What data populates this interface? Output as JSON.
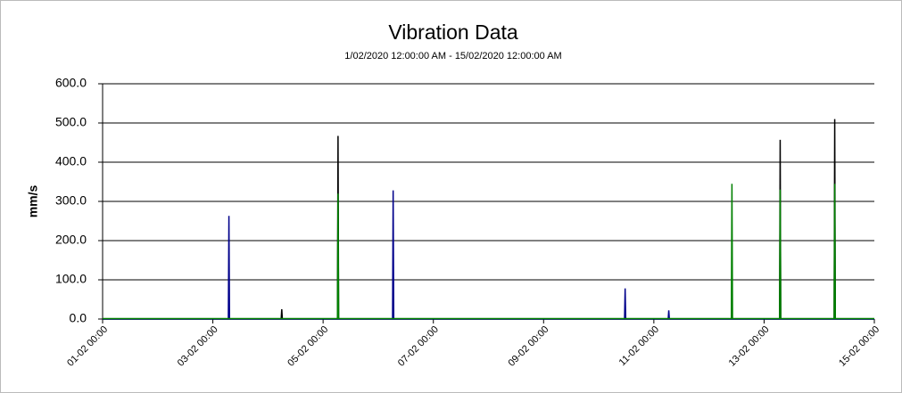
{
  "chart_data": {
    "type": "line",
    "title": "Vibration Data",
    "subtitle": "1/02/2020 12:00:00 AM - 15/02/2020 12:00:00 AM",
    "y_label": "mm/s",
    "xlim": [
      "01-02 00:00",
      "15-02 00:00"
    ],
    "xticks": [
      "01-02 00:00",
      "03-02 00:00",
      "05-02 00:00",
      "07-02 00:00",
      "09-02 00:00",
      "11-02 00:00",
      "13-02 00:00",
      "15-02 00:00"
    ],
    "ylim": [
      0,
      600
    ],
    "yticks": [
      {
        "value": 0,
        "label": "0.0"
      },
      {
        "value": 100,
        "label": "100.0"
      },
      {
        "value": 200,
        "label": "200.0"
      },
      {
        "value": 300,
        "label": "300.0"
      },
      {
        "value": 400,
        "label": "400.0"
      },
      {
        "value": 500,
        "label": "500.0"
      },
      {
        "value": 600,
        "label": "600.0"
      }
    ],
    "grid": true,
    "series": [
      {
        "color": "#000000",
        "x": [
          "01-02 00:00",
          "04-02 05:45",
          "04-02 06:00",
          "04-02 06:15",
          "05-02 06:15",
          "05-02 06:30",
          "05-02 06:45",
          "13-02 06:45",
          "13-02 07:00",
          "13-02 07:15",
          "14-02 06:30",
          "14-02 06:45",
          "14-02 07:00",
          "15-02 00:00"
        ],
        "values": [
          0,
          0,
          25,
          0,
          0,
          467,
          0,
          0,
          457,
          0,
          0,
          510,
          0,
          0
        ]
      },
      {
        "color": "#00008b",
        "x": [
          "01-02 00:00",
          "03-02 06:45",
          "03-02 07:00",
          "03-02 07:15",
          "06-02 06:15",
          "06-02 06:30",
          "06-02 06:45",
          "10-02 11:15",
          "10-02 11:30",
          "10-02 11:45",
          "11-02 06:15",
          "11-02 06:30",
          "11-02 06:45",
          "15-02 00:00"
        ],
        "values": [
          0,
          0,
          263,
          0,
          0,
          328,
          0,
          0,
          78,
          0,
          0,
          22,
          0,
          0
        ]
      },
      {
        "color": "#008000",
        "x": [
          "01-02 00:00",
          "05-02 06:15",
          "05-02 06:30",
          "05-02 06:45",
          "12-02 09:45",
          "12-02 10:00",
          "12-02 10:15",
          "13-02 06:45",
          "13-02 07:00",
          "13-02 07:15",
          "14-02 06:30",
          "14-02 06:45",
          "14-02 07:00",
          "15-02 00:00"
        ],
        "values": [
          1,
          1,
          320,
          1,
          1,
          345,
          1,
          1,
          330,
          1,
          1,
          345,
          1,
          1
        ]
      }
    ]
  }
}
